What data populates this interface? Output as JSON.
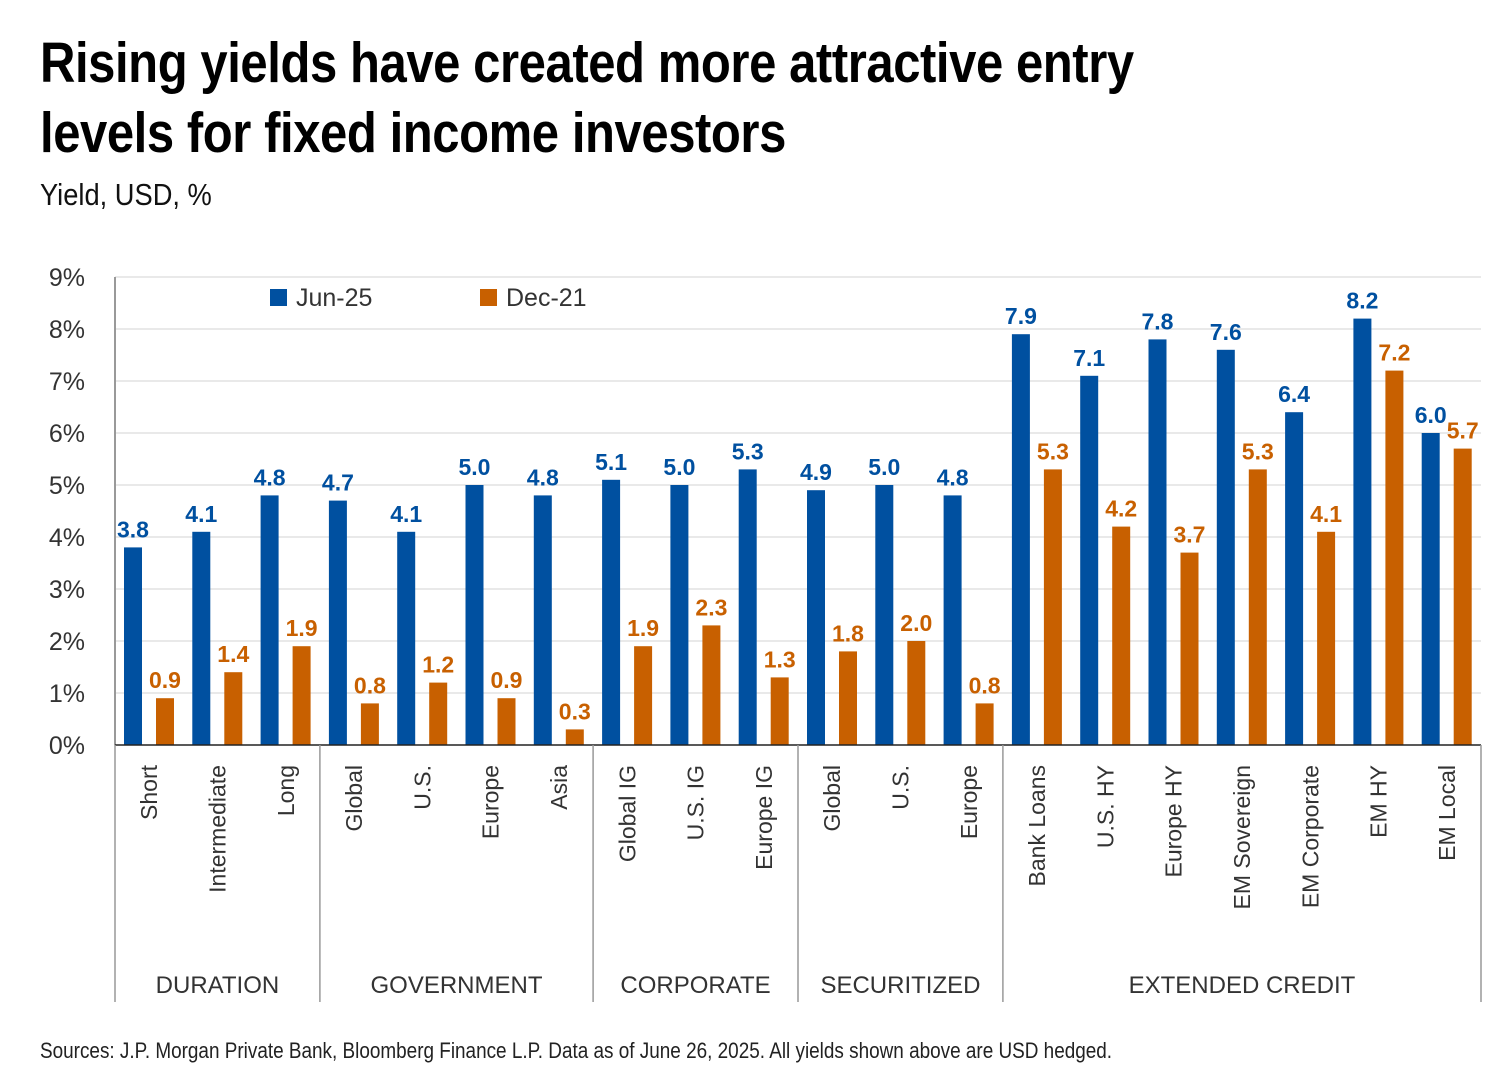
{
  "header": {
    "title_line1": "Rising yields have created more attractive entry",
    "title_line2": "levels for fixed income investors",
    "subtitle": "Yield, USD, %"
  },
  "footer": {
    "source": "Sources: J.P. Morgan Private Bank, Bloomberg Finance L.P. Data as of June 26, 2025. All yields shown above are USD hedged."
  },
  "chart_data": {
    "type": "bar",
    "title": "Rising yields have created more attractive entry levels for fixed income investors",
    "subtitle": "Yield, USD, %",
    "xlabel": "",
    "ylabel": "Yield, USD, %",
    "ylim": [
      0,
      9
    ],
    "yticks": [
      0,
      1,
      2,
      3,
      4,
      5,
      6,
      7,
      8,
      9
    ],
    "ytick_labels": [
      "0%",
      "1%",
      "2%",
      "3%",
      "4%",
      "5%",
      "6%",
      "7%",
      "8%",
      "9%"
    ],
    "grid": true,
    "legend_position": "top-left",
    "categories": [
      "Short",
      "Intermediate",
      "Long",
      "Global",
      "U.S.",
      "Europe",
      "Asia",
      "Global IG",
      "U.S. IG",
      "Europe IG",
      "Global",
      "U.S.",
      "Europe",
      "Bank Loans",
      "U.S. HY",
      "Europe HY",
      "EM Sovereign",
      "EM Corporate",
      "EM HY",
      "EM Local"
    ],
    "groups": [
      {
        "name": "DURATION",
        "count": 3
      },
      {
        "name": "GOVERNMENT",
        "count": 4
      },
      {
        "name": "CORPORATE",
        "count": 3
      },
      {
        "name": "SECURITIZED",
        "count": 3
      },
      {
        "name": "EXTENDED CREDIT",
        "count": 7
      }
    ],
    "series": [
      {
        "name": "Jun-25",
        "color": "#0050A0",
        "values": [
          3.8,
          4.1,
          4.8,
          4.7,
          4.1,
          5.0,
          4.8,
          5.1,
          5.0,
          5.3,
          4.9,
          5.0,
          4.8,
          7.9,
          7.1,
          7.8,
          7.6,
          6.4,
          8.2,
          6.0
        ]
      },
      {
        "name": "Dec-21",
        "color": "#C86000",
        "values": [
          0.9,
          1.4,
          1.9,
          0.8,
          1.2,
          0.9,
          0.3,
          1.9,
          2.3,
          1.3,
          1.8,
          2.0,
          0.8,
          5.3,
          4.2,
          3.7,
          5.3,
          4.1,
          7.2,
          5.7
        ]
      }
    ]
  }
}
